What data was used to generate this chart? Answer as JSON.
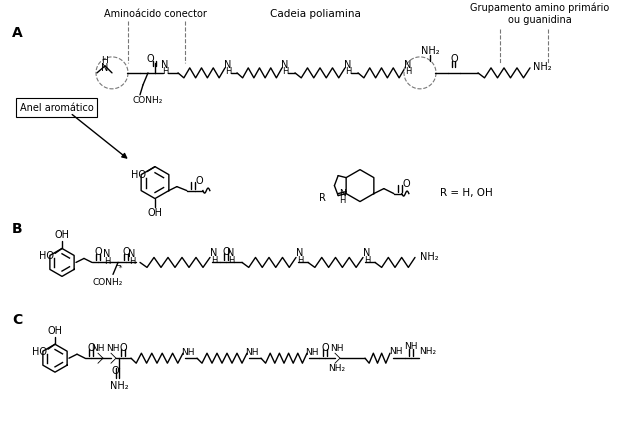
{
  "background_color": "#ffffff",
  "fig_width": 6.37,
  "fig_height": 4.4,
  "dpi": 100,
  "text_aminoacido": "Aminoácido conector",
  "text_cadeia": "Cadeia poliamina",
  "text_grupamento": "Grupamento amino primário\nou guanidina",
  "text_anel": "Anel aromático",
  "text_R_eq": "R = H, OH",
  "line_color": "#000000",
  "dash_color": "#777777"
}
